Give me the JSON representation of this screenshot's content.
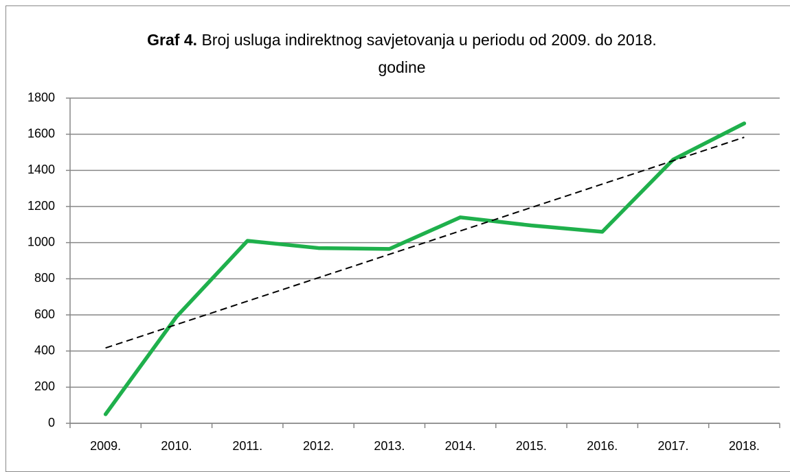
{
  "chart_data": {
    "type": "line",
    "title": {
      "label": "Graf 4.",
      "text": "Broj usluga indirektnog savjetovanja u periodu od 2009. do 2018. godine"
    },
    "categories": [
      "2009.",
      "2010.",
      "2011.",
      "2012.",
      "2013.",
      "2014.",
      "2015.",
      "2016.",
      "2017.",
      "2018."
    ],
    "series": [
      {
        "color": "#1fb04c",
        "values": [
          50,
          590,
          1010,
          970,
          965,
          1140,
          1095,
          1060,
          1460,
          1660
        ]
      }
    ],
    "trendline": "linear",
    "trendline_color": "#000000",
    "ylim": [
      0,
      1800
    ],
    "yticks": [
      0,
      200,
      400,
      600,
      800,
      1000,
      1200,
      1400,
      1600,
      1800
    ],
    "grid": true
  }
}
